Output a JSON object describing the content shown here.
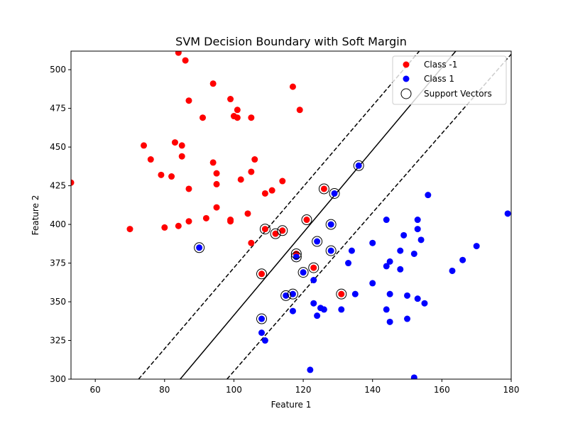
{
  "chart_data": {
    "type": "scatter",
    "title": "SVM Decision Boundary with Soft Margin",
    "xlabel": "Feature 1",
    "ylabel": "Feature 2",
    "xlim": [
      53,
      180
    ],
    "ylim": [
      300,
      512
    ],
    "xticks": [
      60,
      80,
      100,
      120,
      140,
      160,
      180
    ],
    "yticks": [
      300,
      325,
      350,
      375,
      400,
      425,
      450,
      475,
      500
    ],
    "grid": false,
    "legend_position": "top-right",
    "series": [
      {
        "name": "Class -1",
        "color": "#ff0000",
        "points": [
          [
            53,
            427
          ],
          [
            70,
            397
          ],
          [
            74,
            451
          ],
          [
            76,
            442
          ],
          [
            79,
            432
          ],
          [
            80,
            398
          ],
          [
            82,
            431
          ],
          [
            83,
            453
          ],
          [
            84,
            399
          ],
          [
            84,
            511
          ],
          [
            85,
            451
          ],
          [
            85,
            444
          ],
          [
            86,
            506
          ],
          [
            87,
            480
          ],
          [
            87,
            423
          ],
          [
            87,
            402
          ],
          [
            91,
            469
          ],
          [
            92,
            404
          ],
          [
            94,
            491
          ],
          [
            94,
            440
          ],
          [
            95,
            433
          ],
          [
            95,
            426
          ],
          [
            95,
            411
          ],
          [
            99,
            481
          ],
          [
            99,
            403
          ],
          [
            99,
            402
          ],
          [
            100,
            470
          ],
          [
            101,
            474
          ],
          [
            101,
            469
          ],
          [
            102,
            429
          ],
          [
            104,
            407
          ],
          [
            105,
            469
          ],
          [
            105,
            434
          ],
          [
            105,
            388
          ],
          [
            106,
            442
          ],
          [
            109,
            420
          ],
          [
            109,
            397
          ],
          [
            111,
            422
          ],
          [
            112,
            394
          ],
          [
            114,
            428
          ],
          [
            114,
            396
          ],
          [
            117,
            489
          ],
          [
            118,
            381
          ],
          [
            119,
            474
          ],
          [
            121,
            403
          ],
          [
            123,
            372
          ],
          [
            126,
            423
          ],
          [
            131,
            355
          ],
          [
            108,
            368
          ]
        ]
      },
      {
        "name": "Class 1",
        "color": "#0000ff",
        "points": [
          [
            90,
            385
          ],
          [
            108,
            339
          ],
          [
            108,
            330
          ],
          [
            109,
            325
          ],
          [
            115,
            354
          ],
          [
            117,
            355
          ],
          [
            117,
            344
          ],
          [
            118,
            379
          ],
          [
            120,
            369
          ],
          [
            122,
            306
          ],
          [
            123,
            364
          ],
          [
            123,
            349
          ],
          [
            124,
            341
          ],
          [
            124,
            389
          ],
          [
            125,
            346
          ],
          [
            126,
            345
          ],
          [
            128,
            400
          ],
          [
            128,
            383
          ],
          [
            129,
            420
          ],
          [
            131,
            345
          ],
          [
            133,
            375
          ],
          [
            134,
            383
          ],
          [
            135,
            355
          ],
          [
            136,
            438
          ],
          [
            140,
            388
          ],
          [
            140,
            362
          ],
          [
            144,
            403
          ],
          [
            144,
            373
          ],
          [
            144,
            345
          ],
          [
            145,
            376
          ],
          [
            145,
            355
          ],
          [
            145,
            337
          ],
          [
            148,
            383
          ],
          [
            148,
            371
          ],
          [
            149,
            393
          ],
          [
            150,
            354
          ],
          [
            150,
            339
          ],
          [
            152,
            381
          ],
          [
            152,
            301
          ],
          [
            153,
            403
          ],
          [
            153,
            397
          ],
          [
            153,
            352
          ],
          [
            154,
            390
          ],
          [
            155,
            349
          ],
          [
            156,
            419
          ],
          [
            163,
            370
          ],
          [
            166,
            377
          ],
          [
            170,
            386
          ],
          [
            179,
            407
          ]
        ]
      },
      {
        "name": "Support Vectors",
        "points": [
          [
            90,
            385
          ],
          [
            108,
            368
          ],
          [
            108,
            339
          ],
          [
            109,
            397
          ],
          [
            112,
            394
          ],
          [
            114,
            396
          ],
          [
            115,
            354
          ],
          [
            117,
            355
          ],
          [
            118,
            381
          ],
          [
            118,
            379
          ],
          [
            120,
            369
          ],
          [
            121,
            403
          ],
          [
            123,
            372
          ],
          [
            124,
            389
          ],
          [
            126,
            423
          ],
          [
            128,
            400
          ],
          [
            128,
            383
          ],
          [
            129,
            420
          ],
          [
            131,
            355
          ],
          [
            136,
            438
          ]
        ]
      }
    ],
    "lines": [
      {
        "role": "decision_boundary",
        "style": "solid",
        "points": [
          [
            84.5,
            300
          ],
          [
            164,
            512
          ]
        ]
      },
      {
        "role": "margin",
        "style": "dashed",
        "points": [
          [
            72.5,
            300
          ],
          [
            153.5,
            512
          ]
        ]
      },
      {
        "role": "margin",
        "style": "dashed",
        "points": [
          [
            98,
            300
          ],
          [
            180,
            510
          ]
        ]
      }
    ]
  }
}
